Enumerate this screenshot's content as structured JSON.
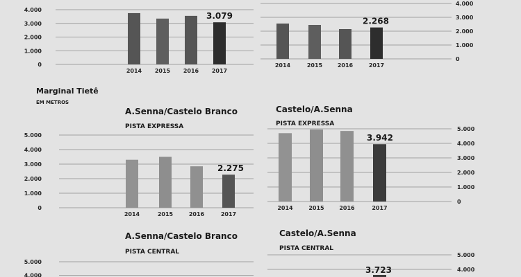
{
  "section": {
    "title": "Marginal Tietê",
    "unit": "EM METROS"
  },
  "chart_data": [
    {
      "type": "bar",
      "title": "",
      "subtitle": "",
      "categories": [
        "2014",
        "2015",
        "2016",
        "2017"
      ],
      "values": [
        3750,
        3350,
        3550,
        3079
      ],
      "value_label": "3.079",
      "yticks": [
        "0",
        "1.000",
        "2.000",
        "3.000",
        "4.000"
      ],
      "axis_side": "left",
      "ylim": [
        0,
        4000
      ],
      "colors": [
        "#555555",
        "#5e5e5e",
        "#555555",
        "#2d2d2d"
      ]
    },
    {
      "type": "bar",
      "title": "",
      "subtitle": "",
      "categories": [
        "2014",
        "2015",
        "2016",
        "2017"
      ],
      "values": [
        2550,
        2450,
        2150,
        2268
      ],
      "value_label": "2.268",
      "yticks": [
        "0",
        "1.000",
        "2.000",
        "3.000",
        "4.000"
      ],
      "axis_side": "right",
      "ylim": [
        0,
        4000
      ],
      "colors": [
        "#555555",
        "#5e5e5e",
        "#555555",
        "#2d2d2d"
      ]
    },
    {
      "type": "bar",
      "title": "A.Senna/Castelo Branco",
      "subtitle": "PISTA EXPRESSA",
      "categories": [
        "2014",
        "2015",
        "2016",
        "2017"
      ],
      "values": [
        3300,
        3500,
        2850,
        2275
      ],
      "value_label": "2.275",
      "yticks": [
        "0",
        "1.000",
        "2.000",
        "3.000",
        "4.000",
        "5.000"
      ],
      "axis_side": "left",
      "ylim": [
        0,
        5000
      ],
      "colors": [
        "#929292",
        "#8e8e8e",
        "#909090",
        "#555555"
      ]
    },
    {
      "type": "bar",
      "title": "Castelo/A.Senna",
      "subtitle": "PISTA EXPRESSA",
      "categories": [
        "2014",
        "2015",
        "2016",
        "2017"
      ],
      "values": [
        4700,
        4950,
        4850,
        3942
      ],
      "value_label": "3.942",
      "yticks": [
        "0",
        "1.000",
        "2.000",
        "3.000",
        "4.000",
        "5.000"
      ],
      "axis_side": "right",
      "ylim": [
        0,
        5000
      ],
      "colors": [
        "#929292",
        "#8e8e8e",
        "#909090",
        "#3b3b3b"
      ]
    },
    {
      "type": "bar",
      "title": "A.Senna/Castelo Branco",
      "subtitle": "PISTA CENTRAL",
      "categories": [],
      "values": [],
      "yticks": [
        "4.000",
        "5.000"
      ],
      "axis_side": "left",
      "ylim": [
        0,
        5000
      ]
    },
    {
      "type": "bar",
      "title": "Castelo/A.Senna",
      "subtitle": "PISTA CENTRAL",
      "categories": [],
      "values": [],
      "value_label": "3.723",
      "yticks": [
        "4.000",
        "5.000"
      ],
      "axis_side": "right",
      "ylim": [
        0,
        5000
      ]
    }
  ]
}
